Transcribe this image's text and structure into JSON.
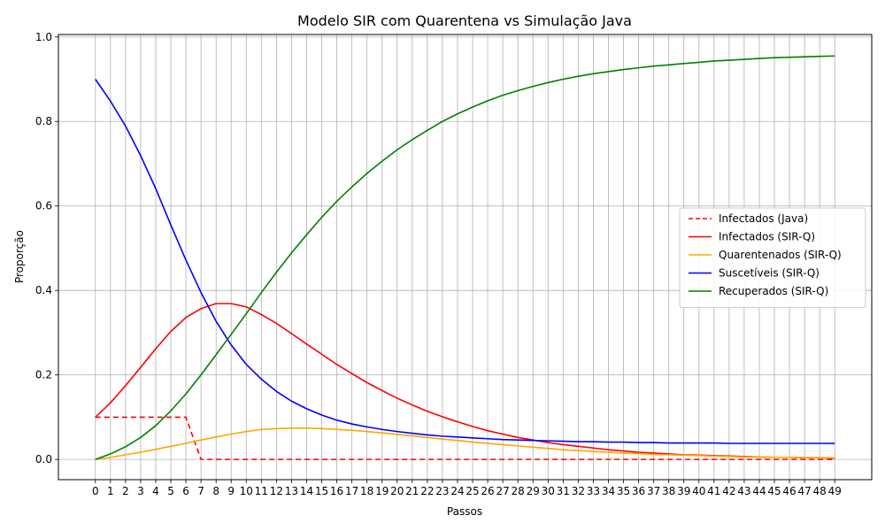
{
  "chart_data": {
    "type": "line",
    "title": "Modelo SIR com Quarentena vs Simulação Java",
    "xlabel": "Passos",
    "ylabel": "Proporção",
    "xlim": [
      -2.45,
      51.45
    ],
    "ylim": [
      -0.0479,
      1.0058
    ],
    "x_ticks": [
      0,
      1,
      2,
      3,
      4,
      5,
      6,
      7,
      8,
      9,
      10,
      11,
      12,
      13,
      14,
      15,
      16,
      17,
      18,
      19,
      20,
      21,
      22,
      23,
      24,
      25,
      26,
      27,
      28,
      29,
      30,
      31,
      32,
      33,
      34,
      35,
      36,
      37,
      38,
      39,
      40,
      41,
      42,
      43,
      44,
      45,
      46,
      47,
      48,
      49
    ],
    "y_ticks": [
      0.0,
      0.2,
      0.4,
      0.6,
      0.8,
      1.0
    ],
    "y_tick_labels": [
      "0.0",
      "0.2",
      "0.4",
      "0.6",
      "0.8",
      "1.0"
    ],
    "grid": true,
    "grid_axis": "x and y",
    "legend_position": "center-right",
    "series": [
      {
        "name": "Infectados (Java)",
        "color": "#ff0000",
        "dashed": true,
        "x": [
          0,
          1,
          2,
          3,
          4,
          5,
          6,
          7,
          8,
          9,
          10,
          11,
          12,
          13,
          14,
          15,
          16,
          17,
          18,
          19,
          20,
          21,
          22,
          23,
          24,
          25,
          26,
          27,
          28,
          29,
          30,
          31,
          32,
          33,
          34,
          35,
          36,
          37,
          38,
          39,
          40,
          41,
          42,
          43,
          44,
          45,
          46,
          47,
          48,
          49
        ],
        "y": [
          0.1,
          0.1,
          0.1,
          0.1,
          0.1,
          0.1,
          0.1,
          0,
          0,
          0,
          0,
          0,
          0,
          0,
          0,
          0,
          0,
          0,
          0,
          0,
          0,
          0,
          0,
          0,
          0,
          0,
          0,
          0,
          0,
          0,
          0,
          0,
          0,
          0,
          0,
          0,
          0,
          0,
          0,
          0,
          0,
          0,
          0,
          0,
          0,
          0,
          0,
          0,
          0,
          0
        ]
      },
      {
        "name": "Infectados (SIR-Q)",
        "color": "#ff0000",
        "dashed": false,
        "x": [
          0,
          1,
          2,
          3,
          4,
          5,
          6,
          7,
          8,
          9,
          10,
          11,
          12,
          13,
          14,
          15,
          16,
          17,
          18,
          19,
          20,
          21,
          22,
          23,
          24,
          25,
          26,
          27,
          28,
          29,
          30,
          31,
          32,
          33,
          34,
          35,
          36,
          37,
          38,
          39,
          40,
          41,
          42,
          43,
          44,
          45,
          46,
          47,
          48,
          49
        ],
        "y": [
          0.1,
          0.134,
          0.175,
          0.218,
          0.262,
          0.303,
          0.336,
          0.357,
          0.369,
          0.369,
          0.361,
          0.343,
          0.322,
          0.298,
          0.273,
          0.249,
          0.225,
          0.203,
          0.182,
          0.163,
          0.145,
          0.129,
          0.114,
          0.101,
          0.089,
          0.078,
          0.068,
          0.06,
          0.052,
          0.046,
          0.04,
          0.035,
          0.031,
          0.027,
          0.023,
          0.02,
          0.017,
          0.015,
          0.013,
          0.011,
          0.01,
          0.009,
          0.008,
          0.007,
          0.006,
          0.005,
          0.005,
          0.004,
          0.004,
          0.003
        ]
      },
      {
        "name": "Quarentenados (SIR-Q)",
        "color": "#ffa500",
        "dashed": false,
        "x": [
          0,
          1,
          2,
          3,
          4,
          5,
          6,
          7,
          8,
          9,
          10,
          11,
          12,
          13,
          14,
          15,
          16,
          17,
          18,
          19,
          20,
          21,
          22,
          23,
          24,
          25,
          26,
          27,
          28,
          29,
          30,
          31,
          32,
          33,
          34,
          35,
          36,
          37,
          38,
          39,
          40,
          41,
          42,
          43,
          44,
          45,
          46,
          47,
          48,
          49
        ],
        "y": [
          0,
          0.005,
          0.011,
          0.017,
          0.024,
          0.031,
          0.038,
          0.046,
          0.053,
          0.06,
          0.066,
          0.071,
          0.073,
          0.074,
          0.074,
          0.073,
          0.071,
          0.069,
          0.066,
          0.063,
          0.059,
          0.056,
          0.052,
          0.048,
          0.045,
          0.041,
          0.038,
          0.035,
          0.032,
          0.029,
          0.026,
          0.023,
          0.021,
          0.019,
          0.017,
          0.015,
          0.014,
          0.012,
          0.011,
          0.01,
          0.009,
          0.008,
          0.007,
          0.006,
          0.006,
          0.005,
          0.005,
          0.004,
          0.004,
          0.004
        ]
      },
      {
        "name": "Suscetíveis (SIR-Q)",
        "color": "#0000ff",
        "dashed": false,
        "x": [
          0,
          1,
          2,
          3,
          4,
          5,
          6,
          7,
          8,
          9,
          10,
          11,
          12,
          13,
          14,
          15,
          16,
          17,
          18,
          19,
          20,
          21,
          22,
          23,
          24,
          25,
          26,
          27,
          28,
          29,
          30,
          31,
          32,
          33,
          34,
          35,
          36,
          37,
          38,
          39,
          40,
          41,
          42,
          43,
          44,
          45,
          46,
          47,
          48,
          49
        ],
        "y": [
          0.9,
          0.848,
          0.789,
          0.719,
          0.641,
          0.555,
          0.472,
          0.395,
          0.327,
          0.271,
          0.225,
          0.19,
          0.161,
          0.138,
          0.12,
          0.105,
          0.093,
          0.084,
          0.077,
          0.071,
          0.066,
          0.062,
          0.058,
          0.055,
          0.053,
          0.051,
          0.049,
          0.047,
          0.046,
          0.045,
          0.044,
          0.043,
          0.042,
          0.042,
          0.041,
          0.041,
          0.04,
          0.04,
          0.039,
          0.039,
          0.039,
          0.039,
          0.038,
          0.038,
          0.038,
          0.038,
          0.038,
          0.038,
          0.038,
          0.038
        ]
      },
      {
        "name": "Recuperados (SIR-Q)",
        "color": "#008000",
        "dashed": false,
        "x": [
          0,
          1,
          2,
          3,
          4,
          5,
          6,
          7,
          8,
          9,
          10,
          11,
          12,
          13,
          14,
          15,
          16,
          17,
          18,
          19,
          20,
          21,
          22,
          23,
          24,
          25,
          26,
          27,
          28,
          29,
          30,
          31,
          32,
          33,
          34,
          35,
          36,
          37,
          38,
          39,
          40,
          41,
          42,
          43,
          44,
          45,
          46,
          47,
          48,
          49
        ],
        "y": [
          0,
          0.013,
          0.03,
          0.052,
          0.08,
          0.115,
          0.155,
          0.2,
          0.248,
          0.296,
          0.345,
          0.395,
          0.443,
          0.489,
          0.532,
          0.573,
          0.611,
          0.645,
          0.677,
          0.706,
          0.733,
          0.757,
          0.779,
          0.8,
          0.818,
          0.834,
          0.849,
          0.862,
          0.873,
          0.883,
          0.892,
          0.9,
          0.907,
          0.913,
          0.918,
          0.923,
          0.927,
          0.931,
          0.934,
          0.937,
          0.94,
          0.943,
          0.945,
          0.947,
          0.949,
          0.951,
          0.952,
          0.953,
          0.954,
          0.955
        ]
      }
    ]
  }
}
